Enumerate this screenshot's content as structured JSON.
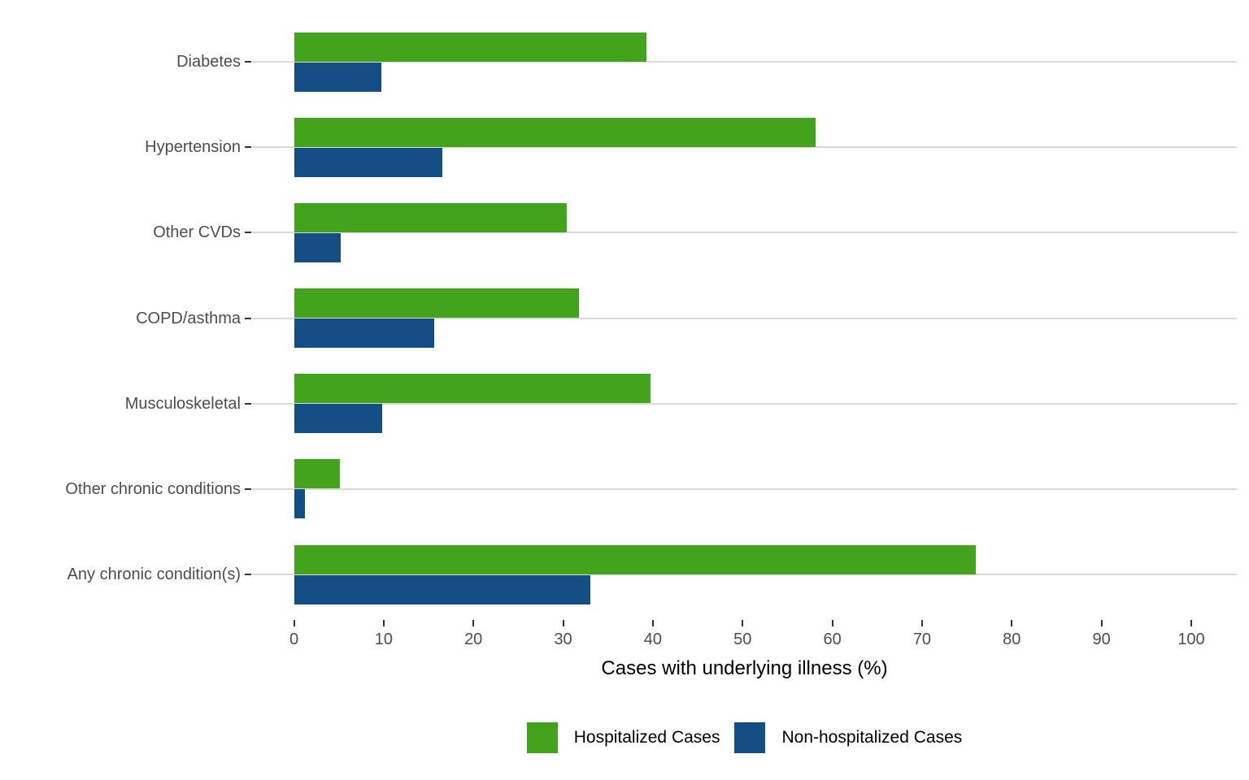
{
  "chart_data": {
    "type": "bar",
    "orientation": "horizontal",
    "title": "",
    "xlabel": "Cases with underlying illness (%)",
    "ylabel": "",
    "categories": [
      "Diabetes",
      "Hypertension",
      "Other CVDs",
      "COPD/asthma",
      "Musculoskeletal",
      "Other chronic conditions",
      "Any chronic condition(s)"
    ],
    "series": [
      {
        "name": "Hospitalized Cases",
        "color": "#43A31C",
        "values": [
          39.3,
          58.1,
          30.4,
          31.8,
          39.7,
          5.1,
          76.0
        ]
      },
      {
        "name": "Non-hospitalized Cases",
        "color": "#154D85",
        "values": [
          9.7,
          16.5,
          5.2,
          15.6,
          9.8,
          1.2,
          33.0
        ]
      }
    ],
    "xlim": [
      0,
      100
    ],
    "xticks": [
      0,
      10,
      20,
      30,
      40,
      50,
      60,
      70,
      80,
      90,
      100
    ],
    "grid": "horizontal category gridlines only",
    "legend_position": "bottom",
    "colors": {
      "gridline": "#D9D9D9",
      "axis_tick": "#333333",
      "tick_label": "#4D4D4D",
      "axis_title": "#000000",
      "background": "#FFFFFF"
    }
  }
}
